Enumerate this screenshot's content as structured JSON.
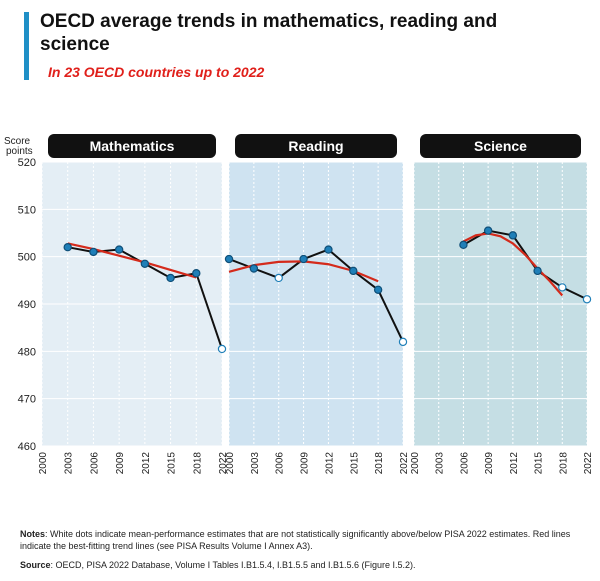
{
  "header": {
    "title": "OECD average trends in mathematics, reading and science",
    "subtitle": "In 23 OECD countries up to 2022"
  },
  "chart_data": {
    "type": "line",
    "ylabel": "Score points",
    "ylim": [
      460,
      520
    ],
    "yticks": [
      460,
      470,
      480,
      490,
      500,
      510,
      520
    ],
    "grid": true,
    "colors": {
      "series": "#111111",
      "trend": "#d42a1b",
      "dot_filled": "#1f7fb8",
      "dot_white": "#ffffff",
      "tab": "#111111",
      "math_bg": "#e4eef5",
      "reading_bg": "#cfe3f1",
      "science_bg": "#c5dee4"
    },
    "panels": [
      {
        "name": "Mathematics",
        "x_ticks": [
          "2000",
          "2003",
          "2006",
          "2009",
          "2012",
          "2015",
          "2018",
          "2022"
        ],
        "points": [
          {
            "x": 2003,
            "y": 502,
            "significant": true
          },
          {
            "x": 2006,
            "y": 501,
            "significant": true
          },
          {
            "x": 2009,
            "y": 501.5,
            "significant": true
          },
          {
            "x": 2012,
            "y": 498.5,
            "significant": true
          },
          {
            "x": 2015,
            "y": 495.5,
            "significant": true
          },
          {
            "x": 2018,
            "y": 496.5,
            "significant": true
          },
          {
            "x": 2022,
            "y": 480.5,
            "significant": false
          }
        ],
        "trend": [
          [
            2003,
            502.8
          ],
          [
            2006,
            501.6
          ],
          [
            2009,
            500.2
          ],
          [
            2012,
            498.8
          ],
          [
            2015,
            497.2
          ],
          [
            2018,
            495.6
          ]
        ]
      },
      {
        "name": "Reading",
        "x_ticks": [
          "2000",
          "2003",
          "2006",
          "2009",
          "2012",
          "2015",
          "2018",
          "2022"
        ],
        "points": [
          {
            "x": 2000,
            "y": 499.5,
            "significant": true
          },
          {
            "x": 2003,
            "y": 497.5,
            "significant": true
          },
          {
            "x": 2006,
            "y": 495.5,
            "significant": false
          },
          {
            "x": 2009,
            "y": 499.5,
            "significant": true
          },
          {
            "x": 2012,
            "y": 501.5,
            "significant": true
          },
          {
            "x": 2015,
            "y": 497,
            "significant": true
          },
          {
            "x": 2018,
            "y": 493,
            "significant": true
          },
          {
            "x": 2022,
            "y": 482,
            "significant": false
          }
        ],
        "trend": [
          [
            2000,
            496.8
          ],
          [
            2003,
            498.2
          ],
          [
            2006,
            498.9
          ],
          [
            2009,
            499
          ],
          [
            2012,
            498.4
          ],
          [
            2015,
            497
          ],
          [
            2018,
            494.8
          ]
        ]
      },
      {
        "name": "Science",
        "x_ticks": [
          "2000",
          "2003",
          "2006",
          "2009",
          "2012",
          "2015",
          "2018",
          "2022"
        ],
        "points": [
          {
            "x": 2006,
            "y": 502.5,
            "significant": true
          },
          {
            "x": 2009,
            "y": 505.5,
            "significant": true
          },
          {
            "x": 2012,
            "y": 504.5,
            "significant": true
          },
          {
            "x": 2015,
            "y": 497,
            "significant": true
          },
          {
            "x": 2018,
            "y": 493.5,
            "significant": false
          },
          {
            "x": 2022,
            "y": 491,
            "significant": false
          }
        ],
        "trend": [
          [
            2006,
            503.2
          ],
          [
            2007.5,
            504.5
          ],
          [
            2009,
            504.9
          ],
          [
            2010.5,
            504.3
          ],
          [
            2012,
            502.8
          ],
          [
            2013.5,
            500.4
          ],
          [
            2015,
            497.5
          ],
          [
            2016.5,
            494.8
          ],
          [
            2018,
            491.8
          ]
        ]
      }
    ]
  },
  "notes": {
    "notes_label": "Notes",
    "notes_text": ": White dots indicate mean-performance estimates that are not statistically significantly above/below PISA 2022 estimates. Red lines indicate the best-fitting trend lines (see PISA Results Volume I Annex A3).",
    "source_label": "Source",
    "source_text": ": OECD, PISA 2022 Database, Volume I Tables I.B1.5.4, I.B1.5.5 and I.B1.5.6 (Figure I.5.2)."
  }
}
